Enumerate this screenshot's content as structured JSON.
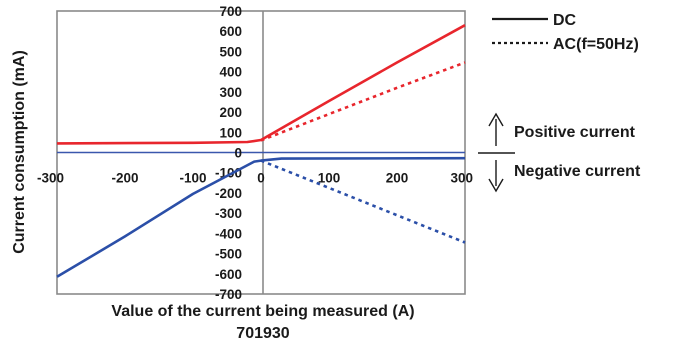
{
  "chart_data": {
    "type": "line",
    "title": "",
    "xlabel": "Value of the current being measured (A)",
    "ylabel": "Current consumption (mA)",
    "caption": "701930",
    "xlim": [
      -300,
      300
    ],
    "ylim": [
      -700,
      700
    ],
    "x_ticks": [
      "-300",
      "-200",
      "-100",
      "0",
      "100",
      "200",
      "300"
    ],
    "y_ticks": [
      "700",
      "600",
      "500",
      "400",
      "300",
      "200",
      "100",
      "0",
      "-100",
      "-200",
      "-300",
      "-400",
      "-500",
      "-600",
      "-700"
    ],
    "grid": false,
    "legend": {
      "placement": "top-right-outside",
      "entries": [
        {
          "label": "DC",
          "style": "solid"
        },
        {
          "label": "AC(f=50Hz)",
          "style": "dotted"
        }
      ]
    },
    "annotations": {
      "positive": "Positive current",
      "negative": "Negative current"
    },
    "series": [
      {
        "mode": "DC",
        "polarity": "positive",
        "style": "solid",
        "color": "#e8262d",
        "x": [
          -300,
          -100,
          -20,
          0,
          100,
          200,
          300
        ],
        "y": [
          45,
          48,
          52,
          62,
          255,
          445,
          630
        ]
      },
      {
        "mode": "DC",
        "polarity": "negative",
        "style": "solid",
        "color": "#2b4fa8",
        "x": [
          -300,
          -200,
          -100,
          -10,
          0,
          30,
          300
        ],
        "y": [
          -615,
          -415,
          -205,
          -45,
          -40,
          -30,
          -28
        ]
      },
      {
        "mode": "AC",
        "polarity": "positive",
        "style": "dotted",
        "color": "#e8262d",
        "x": [
          0,
          100,
          200,
          300
        ],
        "y": [
          60,
          190,
          320,
          445
        ]
      },
      {
        "mode": "AC",
        "polarity": "negative",
        "style": "dotted",
        "color": "#2b4fa8",
        "x": [
          0,
          100,
          200,
          300
        ],
        "y": [
          -40,
          -175,
          -310,
          -445
        ]
      }
    ],
    "colors": {
      "frame": "#8a8a8a",
      "positive": "#e8262d",
      "negative": "#2b4fa8",
      "zero_line": "#3a57ad"
    }
  }
}
